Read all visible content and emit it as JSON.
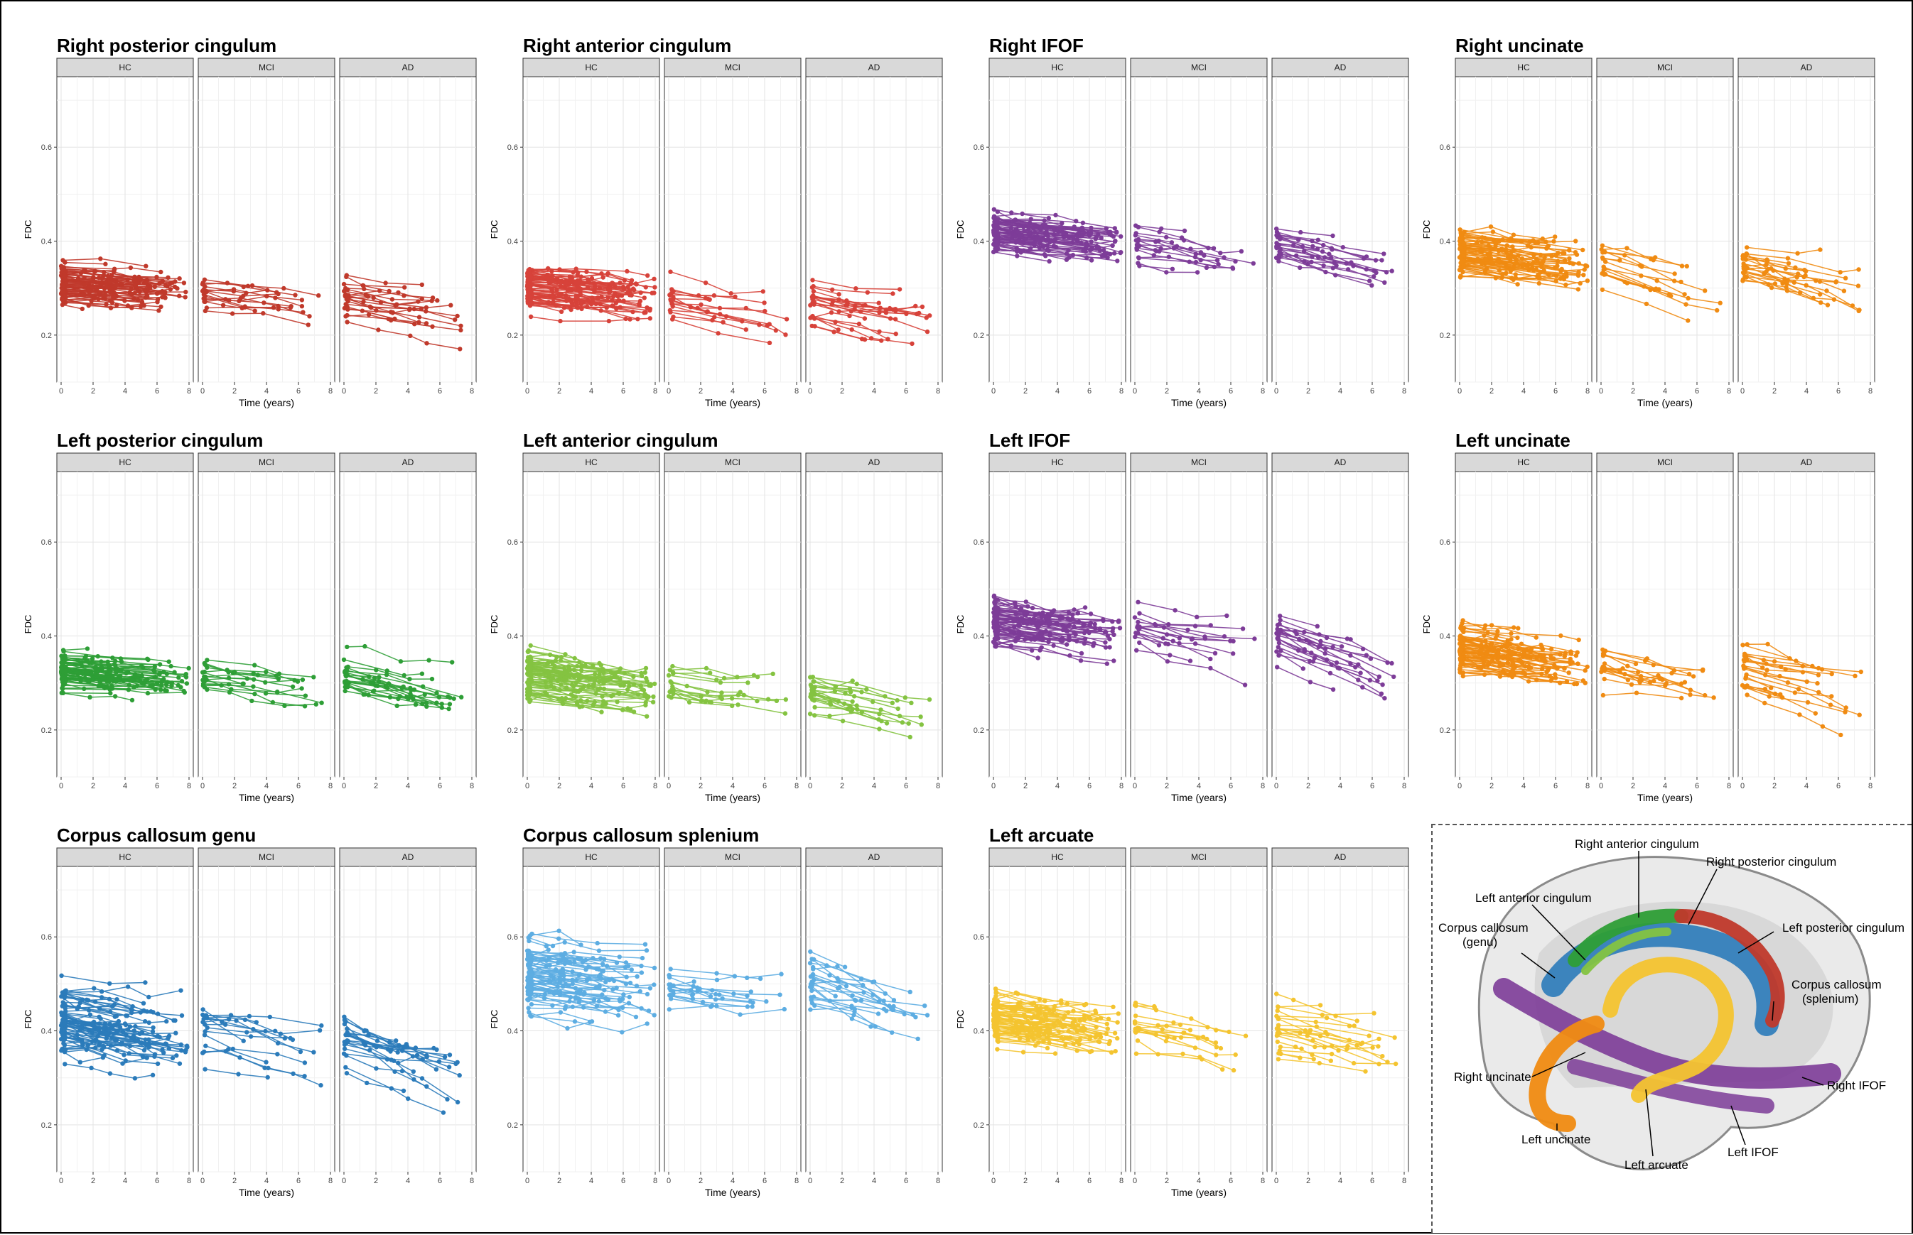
{
  "groups": [
    "HC",
    "MCI",
    "AD"
  ],
  "y_axis_label": "FDC",
  "x_axis_label": "Time (years)",
  "x_ticks": [
    0,
    2,
    4,
    6,
    8
  ],
  "y_ticks": [
    0.2,
    0.4,
    0.6
  ],
  "chart_data": [
    {
      "type": "line",
      "title": "Right posterior cingulum",
      "color": "#c0392b",
      "xlim": [
        0,
        8
      ],
      "ylim": [
        0.1,
        0.75
      ],
      "series": [
        {
          "panel": "HC",
          "center": 0.31,
          "spread": 0.045,
          "slope": -0.002,
          "max_time": 7.8,
          "n_subjects": 75
        },
        {
          "panel": "MCI",
          "center": 0.29,
          "spread": 0.045,
          "slope": -0.004,
          "max_time": 7.5,
          "n_subjects": 16
        },
        {
          "panel": "AD",
          "center": 0.28,
          "spread": 0.045,
          "slope": -0.005,
          "max_time": 7.5,
          "n_subjects": 22
        }
      ]
    },
    {
      "type": "line",
      "title": "Right anterior cingulum",
      "color": "#d7423a",
      "xlim": [
        0,
        8
      ],
      "ylim": [
        0.1,
        0.75
      ],
      "series": [
        {
          "panel": "HC",
          "center": 0.3,
          "spread": 0.045,
          "slope": -0.003,
          "max_time": 8.0,
          "n_subjects": 75
        },
        {
          "panel": "MCI",
          "center": 0.27,
          "spread": 0.045,
          "slope": -0.005,
          "max_time": 7.5,
          "n_subjects": 16
        },
        {
          "panel": "AD",
          "center": 0.27,
          "spread": 0.05,
          "slope": -0.007,
          "max_time": 7.5,
          "n_subjects": 22
        }
      ]
    },
    {
      "type": "line",
      "title": "Right IFOF",
      "color": "#7d3c98",
      "xlim": [
        0,
        8
      ],
      "ylim": [
        0.1,
        0.75
      ],
      "series": [
        {
          "panel": "HC",
          "center": 0.42,
          "spread": 0.04,
          "slope": -0.004,
          "max_time": 8.0,
          "n_subjects": 75
        },
        {
          "panel": "MCI",
          "center": 0.4,
          "spread": 0.045,
          "slope": -0.006,
          "max_time": 7.5,
          "n_subjects": 16
        },
        {
          "panel": "AD",
          "center": 0.39,
          "spread": 0.04,
          "slope": -0.007,
          "max_time": 7.5,
          "n_subjects": 22
        }
      ]
    },
    {
      "type": "line",
      "title": "Right uncinate",
      "color": "#f08b12",
      "xlim": [
        0,
        8
      ],
      "ylim": [
        0.1,
        0.75
      ],
      "series": [
        {
          "panel": "HC",
          "center": 0.38,
          "spread": 0.045,
          "slope": -0.004,
          "max_time": 8.0,
          "n_subjects": 75
        },
        {
          "panel": "MCI",
          "center": 0.35,
          "spread": 0.045,
          "slope": -0.008,
          "max_time": 7.5,
          "n_subjects": 16
        },
        {
          "panel": "AD",
          "center": 0.35,
          "spread": 0.05,
          "slope": -0.009,
          "max_time": 7.5,
          "n_subjects": 22
        }
      ]
    },
    {
      "type": "line",
      "title": "Left posterior cingulum",
      "color": "#2e9e36",
      "xlim": [
        0,
        8
      ],
      "ylim": [
        0.1,
        0.75
      ],
      "series": [
        {
          "panel": "HC",
          "center": 0.33,
          "spread": 0.04,
          "slope": -0.003,
          "max_time": 8.0,
          "n_subjects": 75
        },
        {
          "panel": "MCI",
          "center": 0.31,
          "spread": 0.045,
          "slope": -0.004,
          "max_time": 7.5,
          "n_subjects": 16
        },
        {
          "panel": "AD",
          "center": 0.31,
          "spread": 0.05,
          "slope": -0.006,
          "max_time": 7.5,
          "n_subjects": 22
        }
      ]
    },
    {
      "type": "line",
      "title": "Left anterior cingulum",
      "color": "#84c341",
      "xlim": [
        0,
        8
      ],
      "ylim": [
        0.1,
        0.75
      ],
      "series": [
        {
          "panel": "HC",
          "center": 0.31,
          "spread": 0.05,
          "slope": -0.004,
          "max_time": 8.0,
          "n_subjects": 75
        },
        {
          "panel": "MCI",
          "center": 0.29,
          "spread": 0.04,
          "slope": -0.005,
          "max_time": 7.5,
          "n_subjects": 16
        },
        {
          "panel": "AD",
          "center": 0.28,
          "spread": 0.05,
          "slope": -0.007,
          "max_time": 7.5,
          "n_subjects": 22
        }
      ]
    },
    {
      "type": "line",
      "title": "Left IFOF",
      "color": "#7d3c98",
      "xlim": [
        0,
        8
      ],
      "ylim": [
        0.1,
        0.75
      ],
      "series": [
        {
          "panel": "HC",
          "center": 0.43,
          "spread": 0.045,
          "slope": -0.004,
          "max_time": 8.0,
          "n_subjects": 75
        },
        {
          "panel": "MCI",
          "center": 0.41,
          "spread": 0.05,
          "slope": -0.007,
          "max_time": 7.5,
          "n_subjects": 16
        },
        {
          "panel": "AD",
          "center": 0.4,
          "spread": 0.05,
          "slope": -0.012,
          "max_time": 7.5,
          "n_subjects": 22
        }
      ]
    },
    {
      "type": "line",
      "title": "Left uncinate",
      "color": "#f08b12",
      "xlim": [
        0,
        8
      ],
      "ylim": [
        0.1,
        0.75
      ],
      "series": [
        {
          "panel": "HC",
          "center": 0.37,
          "spread": 0.05,
          "slope": -0.004,
          "max_time": 8.0,
          "n_subjects": 75
        },
        {
          "panel": "MCI",
          "center": 0.34,
          "spread": 0.05,
          "slope": -0.007,
          "max_time": 7.5,
          "n_subjects": 16
        },
        {
          "panel": "AD",
          "center": 0.33,
          "spread": 0.05,
          "slope": -0.009,
          "max_time": 7.5,
          "n_subjects": 22
        }
      ]
    },
    {
      "type": "line",
      "title": "Corpus callosum genu",
      "color": "#2b7bba",
      "xlim": [
        0,
        8
      ],
      "ylim": [
        0.1,
        0.75
      ],
      "series": [
        {
          "panel": "HC",
          "center": 0.42,
          "spread": 0.06,
          "slope": -0.005,
          "max_time": 8.0,
          "n_subjects": 75
        },
        {
          "panel": "MCI",
          "center": 0.4,
          "spread": 0.06,
          "slope": -0.008,
          "max_time": 7.5,
          "n_subjects": 16
        },
        {
          "panel": "AD",
          "center": 0.39,
          "spread": 0.065,
          "slope": -0.011,
          "max_time": 7.5,
          "n_subjects": 22
        }
      ]
    },
    {
      "type": "line",
      "title": "Corpus callosum splenium",
      "color": "#5dade2",
      "xlim": [
        0,
        8
      ],
      "ylim": [
        0.1,
        0.75
      ],
      "series": [
        {
          "panel": "HC",
          "center": 0.52,
          "spread": 0.065,
          "slope": -0.004,
          "max_time": 8.0,
          "n_subjects": 75
        },
        {
          "panel": "MCI",
          "center": 0.49,
          "spread": 0.05,
          "slope": -0.005,
          "max_time": 7.5,
          "n_subjects": 16
        },
        {
          "panel": "AD",
          "center": 0.5,
          "spread": 0.07,
          "slope": -0.01,
          "max_time": 7.5,
          "n_subjects": 22
        }
      ]
    },
    {
      "type": "line",
      "title": "Left arcuate",
      "color": "#f4c430",
      "xlim": [
        0,
        8
      ],
      "ylim": [
        0.1,
        0.75
      ],
      "series": [
        {
          "panel": "HC",
          "center": 0.43,
          "spread": 0.05,
          "slope": -0.004,
          "max_time": 8.0,
          "n_subjects": 75
        },
        {
          "panel": "MCI",
          "center": 0.41,
          "spread": 0.045,
          "slope": -0.006,
          "max_time": 7.5,
          "n_subjects": 16
        },
        {
          "panel": "AD",
          "center": 0.41,
          "spread": 0.055,
          "slope": -0.008,
          "max_time": 7.5,
          "n_subjects": 22
        }
      ]
    }
  ],
  "brain_illustration": {
    "tract_colors": {
      "anterior_cingulum": "#2e9e36",
      "posterior_cingulum": "#c0392b",
      "corpus_callosum": "#2b7bba",
      "ifof": "#7d3c98",
      "uncinate": "#f08b12",
      "arcuate": "#f4c430",
      "left_anterior_cingulum": "#84c341"
    },
    "labels": [
      "Right anterior cingulum",
      "Right posterior cingulum",
      "Left anterior cingulum",
      "Left posterior cingulum",
      "Corpus callosum",
      "(genu)",
      "Corpus callosum",
      "(splenium)",
      "Right uncinate",
      "Right IFOF",
      "Left uncinate",
      "Left arcuate",
      "Left IFOF"
    ]
  }
}
